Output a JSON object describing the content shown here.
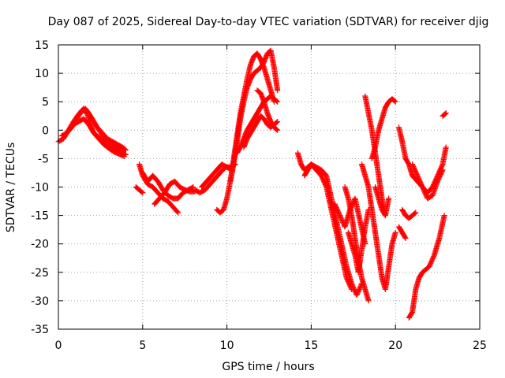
{
  "chart_data": {
    "type": "scatter",
    "title": "Day 087 of 2025, Sidereal Day-to-day VTEC variation (SDTVAR) for receiver djig",
    "xlabel": "GPS time / hours",
    "ylabel": "SDTVAR / TECUs",
    "xlim": [
      0,
      25
    ],
    "ylim": [
      -35,
      15
    ],
    "xticks": [
      "0",
      "5",
      "10",
      "15",
      "20",
      "25"
    ],
    "yticks": [
      "15",
      "10",
      "5",
      "0",
      "-5",
      "-10",
      "-15",
      "-20",
      "-25",
      "-30",
      "-35"
    ],
    "grid": true,
    "marker": "plus",
    "color": "#ff0000",
    "series": [
      {
        "x": [
          0,
          0.3,
          0.6,
          0.9,
          1.2,
          1.5,
          1.7,
          1.9,
          2.1,
          2.3,
          2.6,
          2.9,
          3.2,
          3.5,
          3.8,
          4.0
        ],
        "y": [
          -2.0,
          -1.5,
          0,
          1.5,
          2.8,
          3.8,
          3.0,
          1.0,
          -0.5,
          -1.0,
          -1.8,
          -2.5,
          -3.0,
          -3.5,
          -4.0,
          -4.3
        ]
      },
      {
        "x": [
          0.2,
          0.5,
          0.8,
          1.1,
          1.4,
          1.7,
          2.0,
          2.3,
          2.6,
          2.9,
          3.2,
          3.5,
          3.8,
          4.0
        ],
        "y": [
          -1.0,
          -0.5,
          0.5,
          2.0,
          3.5,
          3.2,
          2.0,
          0.5,
          -0.5,
          -1.5,
          -2.0,
          -2.5,
          -3.0,
          -3.5
        ]
      },
      {
        "x": [
          0.9,
          1.2,
          1.5,
          1.8,
          2.1,
          2.4,
          2.7,
          3.0,
          3.3,
          3.6,
          3.9
        ],
        "y": [
          1.0,
          1.5,
          2.0,
          1.0,
          -0.5,
          -1.5,
          -2.5,
          -3.2,
          -3.8,
          -4.2,
          -4.6
        ]
      },
      {
        "x": [
          1.6,
          1.8,
          2.0,
          2.3,
          2.6,
          2.9,
          3.2,
          3.5,
          3.8
        ],
        "y": [
          3.8,
          3.0,
          2.0,
          0.5,
          -0.8,
          -1.8,
          -2.6,
          -3.2,
          -3.8
        ]
      },
      {
        "x": [
          4.8,
          5.0,
          5.3,
          5.6,
          5.9,
          6.2,
          6.5,
          6.8,
          7.1
        ],
        "y": [
          -6.0,
          -8.0,
          -9.5,
          -10.0,
          -11.0,
          -12.0,
          -12.5,
          -13.5,
          -14.5
        ]
      },
      {
        "x": [
          5.0,
          5.3,
          5.6,
          5.9,
          6.2,
          6.5,
          6.8,
          7.1,
          7.4,
          7.7,
          8.0
        ],
        "y": [
          -7.5,
          -9.0,
          -8.0,
          -9.0,
          -10.5,
          -11.5,
          -12.0,
          -12.0,
          -11.0,
          -10.5,
          -10.0
        ]
      },
      {
        "x": [
          5.7,
          6.0,
          6.3,
          6.6,
          6.9,
          7.2,
          7.5,
          7.8,
          8.1
        ],
        "y": [
          -13.0,
          -12.0,
          -11.0,
          -9.5,
          -9.0,
          -10.0,
          -10.5,
          -10.8,
          -10.8
        ]
      },
      {
        "x": [
          4.6,
          4.8,
          5.0
        ],
        "y": [
          -10.0,
          -10.5,
          -11.0
        ]
      },
      {
        "x": [
          8.1,
          8.4,
          8.7,
          9.0,
          9.3,
          9.6,
          9.9,
          10.2,
          10.5
        ],
        "y": [
          -10.5,
          -11.0,
          -10.5,
          -9.5,
          -8.5,
          -7.5,
          -6.5,
          -6.5,
          -6.0
        ]
      },
      {
        "x": [
          8.5,
          8.8,
          9.1,
          9.4,
          9.7,
          10.0,
          10.3
        ],
        "y": [
          -10.0,
          -9.0,
          -8.0,
          -7.0,
          -6.0,
          -6.5,
          -7.0
        ]
      },
      {
        "x": [
          9.4,
          9.6,
          9.8,
          10.0,
          10.2,
          10.4,
          10.6,
          10.8,
          11.0,
          11.2,
          11.4,
          11.6,
          11.8,
          12.0,
          12.2,
          12.4,
          12.6,
          12.8
        ],
        "y": [
          -14.0,
          -14.5,
          -14.0,
          -12.0,
          -9.0,
          -5.0,
          -1.0,
          3.0,
          6.0,
          9.0,
          11.5,
          13.0,
          13.5,
          12.5,
          11.0,
          9.0,
          7.0,
          5.0
        ]
      },
      {
        "x": [
          10.2,
          10.4,
          10.6,
          10.8,
          11.0,
          11.2,
          11.4,
          11.6,
          11.8,
          12.0,
          12.2,
          12.4,
          12.6,
          12.8,
          13.0
        ],
        "y": [
          -9.0,
          -6.0,
          -2.0,
          2.0,
          5.0,
          7.5,
          9.0,
          10.0,
          10.5,
          11.0,
          12.0,
          13.5,
          14.0,
          11.0,
          7.0
        ]
      },
      {
        "x": [
          10.6,
          10.8,
          11.0,
          11.2,
          11.4,
          11.6,
          11.8,
          12.0,
          12.2,
          12.4,
          12.6,
          12.8,
          13.0
        ],
        "y": [
          -4.0,
          -3.0,
          -1.5,
          0,
          1.0,
          2.0,
          3.0,
          4.0,
          5.0,
          5.5,
          6.0,
          5.5,
          5.0
        ]
      },
      {
        "x": [
          11.0,
          11.2,
          11.4,
          11.6,
          11.8,
          12.0,
          12.2,
          12.4,
          12.6,
          12.8,
          13.0
        ],
        "y": [
          -3.0,
          -1.5,
          -0.5,
          0.5,
          1.5,
          2.5,
          2.0,
          1.0,
          0.5,
          1.0,
          1.5
        ]
      },
      {
        "x": [
          11.8,
          12.0,
          12.2,
          12.4,
          12.6,
          12.8,
          13.0
        ],
        "y": [
          7.0,
          6.5,
          5.0,
          3.0,
          1.5,
          0.5,
          0
        ]
      },
      {
        "x": [
          14.2,
          14.4,
          14.6,
          14.8,
          15.0,
          15.3,
          15.6,
          15.9,
          16.2,
          16.5,
          16.8,
          17.1,
          17.4,
          17.7,
          18.0
        ],
        "y": [
          -4.0,
          -6.0,
          -7.0,
          -6.5,
          -6.0,
          -6.5,
          -7.0,
          -8.0,
          -12.0,
          -16.0,
          -20.0,
          -24.0,
          -27.0,
          -29.0,
          -27.0
        ]
      },
      {
        "x": [
          14.6,
          14.8,
          15.0,
          15.3,
          15.6,
          15.9,
          16.2,
          16.5,
          16.8,
          17.1,
          17.4
        ],
        "y": [
          -8.0,
          -7.0,
          -6.0,
          -7.0,
          -8.0,
          -10.0,
          -14.0,
          -18.0,
          -22.0,
          -26.0,
          -28.0
        ]
      },
      {
        "x": [
          16.4,
          16.7,
          17.0,
          17.3,
          17.6,
          17.9,
          18.2
        ],
        "y": [
          -13.0,
          -15.0,
          -17.0,
          -14.0,
          -12.0,
          -16.0,
          -20.0
        ]
      },
      {
        "x": [
          17.0,
          17.2,
          17.4,
          17.6,
          17.8,
          18.0,
          18.2,
          18.4
        ],
        "y": [
          -10.0,
          -12.0,
          -15.0,
          -19.0,
          -23.0,
          -26.0,
          -28.0,
          -30.0
        ]
      },
      {
        "x": [
          17.2,
          17.4,
          17.6,
          17.8,
          18.0,
          18.2,
          18.4
        ],
        "y": [
          -18.0,
          -20.0,
          -22.0,
          -25.0,
          -21.0,
          -17.0,
          -14.0
        ]
      },
      {
        "x": [
          18.0,
          18.2,
          18.4,
          18.6,
          18.8,
          19.0,
          19.2,
          19.4,
          19.6,
          19.8,
          20.0
        ],
        "y": [
          -6.0,
          -8.0,
          -10.0,
          -14.0,
          -18.0,
          -22.0,
          -26.0,
          -28.0,
          -24.0,
          -20.0,
          -18.0
        ]
      },
      {
        "x": [
          18.2,
          18.4,
          18.6,
          18.8,
          19.0,
          19.2,
          19.4
        ],
        "y": [
          6.0,
          3.0,
          0,
          -4.0,
          -8.0,
          -12.0,
          -15.0
        ]
      },
      {
        "x": [
          18.6,
          18.8,
          19.0,
          19.2,
          19.4,
          19.6,
          19.8,
          20.0
        ],
        "y": [
          -5.0,
          -3.0,
          0,
          2.0,
          4.0,
          5.0,
          5.5,
          5.0
        ]
      },
      {
        "x": [
          18.8,
          19.0,
          19.2,
          19.4,
          19.6
        ],
        "y": [
          -10.0,
          -12.0,
          -14.0,
          -15.0,
          -12.0
        ]
      },
      {
        "x": [
          20.2,
          20.4,
          20.6,
          20.8,
          21.0,
          21.3,
          21.6,
          21.9,
          22.2,
          22.5,
          22.8,
          23.0
        ],
        "y": [
          0.5,
          -2.0,
          -5.0,
          -6.0,
          -8.0,
          -9.0,
          -10.0,
          -11.0,
          -10.0,
          -8.0,
          -6.0,
          -3.0
        ]
      },
      {
        "x": [
          20.4,
          20.6,
          20.8,
          21.0,
          21.2
        ],
        "y": [
          -14.0,
          -15.0,
          -15.5,
          -15.0,
          -14.5
        ]
      },
      {
        "x": [
          20.8,
          21.0,
          21.2,
          21.4,
          21.6,
          21.8,
          22.0,
          22.3,
          22.6,
          22.9
        ],
        "y": [
          -33.0,
          -32.0,
          -28.0,
          -26.0,
          -25.0,
          -24.5,
          -24.0,
          -22.0,
          -19.0,
          -15.0
        ]
      },
      {
        "x": [
          21.0,
          21.3,
          21.6,
          21.9,
          22.2,
          22.5,
          22.8
        ],
        "y": [
          -6.0,
          -8.0,
          -10.0,
          -12.0,
          -11.5,
          -9.0,
          -7.0
        ]
      },
      {
        "x": [
          20.2,
          20.4,
          20.6
        ],
        "y": [
          -17.0,
          -18.0,
          -19.0
        ]
      },
      {
        "x": [
          22.8,
          23.0
        ],
        "y": [
          2.5,
          3.0
        ]
      }
    ]
  }
}
